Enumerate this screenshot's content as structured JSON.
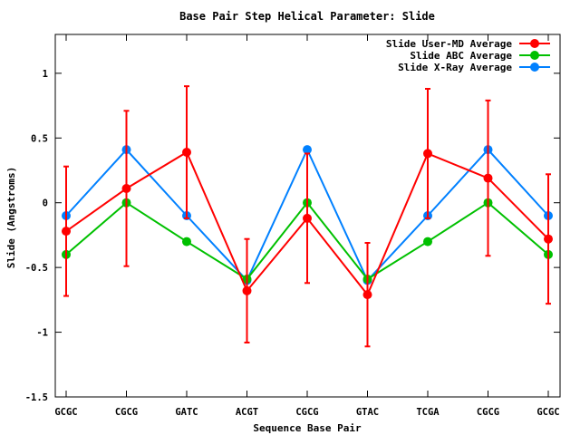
{
  "chart_data": {
    "type": "line",
    "title": "Base Pair Step Helical Parameter: Slide",
    "xlabel": "Sequence Base Pair",
    "ylabel": "Slide (Angstroms)",
    "categories": [
      "GCGC",
      "CGCG",
      "GATC",
      "ACGT",
      "CGCG",
      "GTAC",
      "TCGA",
      "CGCG",
      "GCGC"
    ],
    "ylim": [
      -1.5,
      1.3
    ],
    "yticks": [
      -1.5,
      -1,
      -0.5,
      0,
      0.5,
      1
    ],
    "ytick_labels": [
      "-1.5",
      "-1",
      "-0.5",
      "0",
      "0.5",
      "1"
    ],
    "grid": false,
    "legend_position": "top-right",
    "series": [
      {
        "name": "Slide User-MD Average",
        "color": "#ff0000",
        "values": [
          -0.22,
          0.11,
          0.39,
          -0.68,
          -0.12,
          -0.71,
          0.38,
          0.19,
          -0.28
        ],
        "error": [
          0.5,
          0.6,
          0.51,
          0.4,
          0.5,
          0.4,
          0.5,
          0.6,
          0.5
        ]
      },
      {
        "name": "Slide ABC Average",
        "color": "#00c000",
        "values": [
          -0.4,
          0.0,
          -0.3,
          -0.59,
          0.0,
          -0.59,
          -0.3,
          0.0,
          -0.4
        ]
      },
      {
        "name": "Slide X-Ray Average",
        "color": "#0080ff",
        "values": [
          -0.1,
          0.41,
          -0.1,
          -0.6,
          0.41,
          -0.6,
          -0.1,
          0.41,
          -0.1
        ]
      }
    ]
  }
}
